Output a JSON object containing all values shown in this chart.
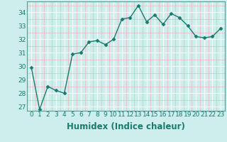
{
  "x": [
    0,
    1,
    2,
    3,
    4,
    5,
    6,
    7,
    8,
    9,
    10,
    11,
    12,
    13,
    14,
    15,
    16,
    17,
    18,
    19,
    20,
    21,
    22,
    23
  ],
  "y": [
    29.9,
    26.8,
    28.5,
    28.2,
    28.0,
    30.9,
    31.0,
    31.8,
    31.9,
    31.6,
    32.0,
    33.5,
    33.6,
    34.5,
    33.3,
    33.8,
    33.1,
    33.9,
    33.6,
    33.0,
    32.2,
    32.1,
    32.2,
    32.8
  ],
  "xlabel": "Humidex (Indice chaleur)",
  "ylim": [
    26.7,
    34.8
  ],
  "yticks": [
    27,
    28,
    29,
    30,
    31,
    32,
    33,
    34
  ],
  "xticks": [
    0,
    1,
    2,
    3,
    4,
    5,
    6,
    7,
    8,
    9,
    10,
    11,
    12,
    13,
    14,
    15,
    16,
    17,
    18,
    19,
    20,
    21,
    22,
    23
  ],
  "line_color": "#1a7a6e",
  "marker": "D",
  "marker_size": 2.5,
  "bg_color": "#ceeeed",
  "grid_major_color": "#ffffff",
  "grid_minor_color": "#e8b8b8",
  "tick_label_fontsize": 6.5,
  "xlabel_fontsize": 8.5,
  "xlabel_fontweight": "bold",
  "linewidth": 1.0
}
